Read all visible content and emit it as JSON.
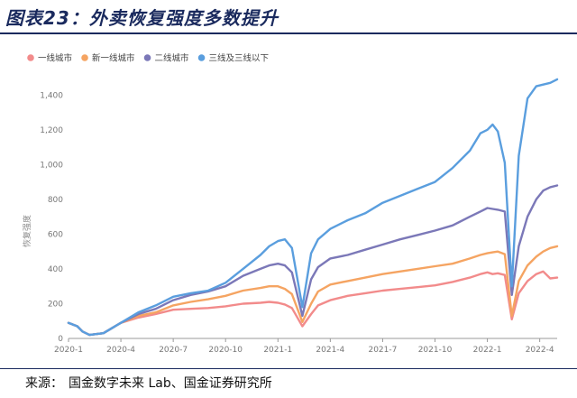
{
  "figure": {
    "title": "图表23：外卖恢复强度多数提升",
    "source_label": "来源：",
    "source_text": "国金数字未来 Lab、国金证券研究所"
  },
  "chart_data": {
    "type": "line",
    "title": "",
    "xlabel": "",
    "ylabel": "恢复强度",
    "ylim": [
      0,
      1500
    ],
    "yticks": [
      0,
      200,
      400,
      600,
      800,
      1000,
      1200,
      1400
    ],
    "ytick_labels": [
      "0",
      "200",
      "400",
      "600",
      "800",
      "1,000",
      "1,200",
      "1,400"
    ],
    "xlim": [
      0,
      28
    ],
    "xticks": [
      0,
      3,
      6,
      9,
      12,
      15,
      18,
      21,
      24,
      27
    ],
    "xtick_labels": [
      "2020-1",
      "2020-4",
      "2020-7",
      "2020-10",
      "2021-1",
      "2021-4",
      "2021-7",
      "2021-10",
      "2022-1",
      "2022-4"
    ],
    "x_unit": "months since 2020-1",
    "legend_position": "top-left",
    "grid": false,
    "series": [
      {
        "name": "一线城市",
        "color": "#f28b8b",
        "x": [
          0,
          0.5,
          0.8,
          1.2,
          2,
          3,
          4,
          5,
          6,
          7,
          8,
          9,
          10,
          11,
          11.5,
          12,
          12.4,
          12.8,
          13.4,
          13.9,
          14.3,
          15,
          16,
          17,
          18,
          19,
          20,
          21,
          22,
          23,
          23.6,
          24,
          24.3,
          24.6,
          25,
          25.4,
          25.8,
          26.3,
          26.8,
          27.2,
          27.6,
          28
        ],
        "y": [
          90,
          70,
          40,
          20,
          30,
          90,
          120,
          140,
          165,
          170,
          175,
          185,
          200,
          205,
          210,
          205,
          195,
          175,
          70,
          140,
          190,
          220,
          245,
          260,
          275,
          285,
          295,
          305,
          325,
          350,
          370,
          380,
          370,
          375,
          365,
          110,
          260,
          330,
          370,
          385,
          345,
          350
        ]
      },
      {
        "name": "新一线城市",
        "color": "#f5a462",
        "x": [
          0,
          0.5,
          0.8,
          1.2,
          2,
          3,
          4,
          5,
          6,
          7,
          8,
          9,
          10,
          11,
          11.5,
          12,
          12.4,
          12.8,
          13.4,
          13.9,
          14.3,
          15,
          16,
          17,
          18,
          19,
          20,
          21,
          22,
          23,
          23.6,
          24,
          24.3,
          24.6,
          25,
          25.4,
          25.8,
          26.3,
          26.8,
          27.2,
          27.6,
          28
        ],
        "y": [
          90,
          70,
          40,
          20,
          30,
          90,
          130,
          150,
          190,
          210,
          225,
          245,
          275,
          290,
          300,
          300,
          285,
          255,
          95,
          200,
          270,
          310,
          330,
          350,
          370,
          385,
          400,
          415,
          430,
          460,
          480,
          490,
          495,
          500,
          485,
          130,
          330,
          420,
          470,
          500,
          520,
          530
        ]
      },
      {
        "name": "二线城市",
        "color": "#7b78b8",
        "x": [
          0,
          0.5,
          0.8,
          1.2,
          2,
          3,
          4,
          5,
          6,
          7,
          8,
          9,
          10,
          11,
          11.5,
          12,
          12.4,
          12.8,
          13.4,
          13.9,
          14.3,
          15,
          16,
          17,
          18,
          19,
          20,
          21,
          22,
          23,
          23.6,
          24,
          24.3,
          24.6,
          25,
          25.4,
          25.8,
          26.3,
          26.8,
          27.2,
          27.6,
          28
        ],
        "y": [
          90,
          70,
          40,
          20,
          30,
          90,
          140,
          170,
          220,
          250,
          270,
          300,
          360,
          400,
          420,
          430,
          420,
          380,
          130,
          340,
          410,
          460,
          480,
          510,
          540,
          570,
          595,
          620,
          650,
          700,
          730,
          750,
          745,
          740,
          730,
          250,
          530,
          700,
          800,
          850,
          870,
          880
        ]
      },
      {
        "name": "三线及三线以下",
        "color": "#5a9ede",
        "x": [
          0,
          0.5,
          0.8,
          1.2,
          2,
          3,
          4,
          5,
          6,
          7,
          8,
          9,
          10,
          11,
          11.5,
          12,
          12.4,
          12.8,
          13.4,
          13.9,
          14.3,
          15,
          16,
          17,
          18,
          19,
          20,
          21,
          22,
          23,
          23.6,
          24,
          24.3,
          24.6,
          25,
          25.4,
          25.8,
          26.3,
          26.8,
          27.2,
          27.6,
          28
        ],
        "y": [
          90,
          70,
          40,
          20,
          30,
          90,
          150,
          190,
          240,
          260,
          275,
          320,
          400,
          480,
          530,
          560,
          570,
          520,
          180,
          490,
          570,
          630,
          680,
          720,
          780,
          820,
          860,
          900,
          980,
          1080,
          1180,
          1200,
          1230,
          1190,
          1010,
          300,
          1050,
          1380,
          1450,
          1460,
          1470,
          1490
        ]
      }
    ]
  }
}
